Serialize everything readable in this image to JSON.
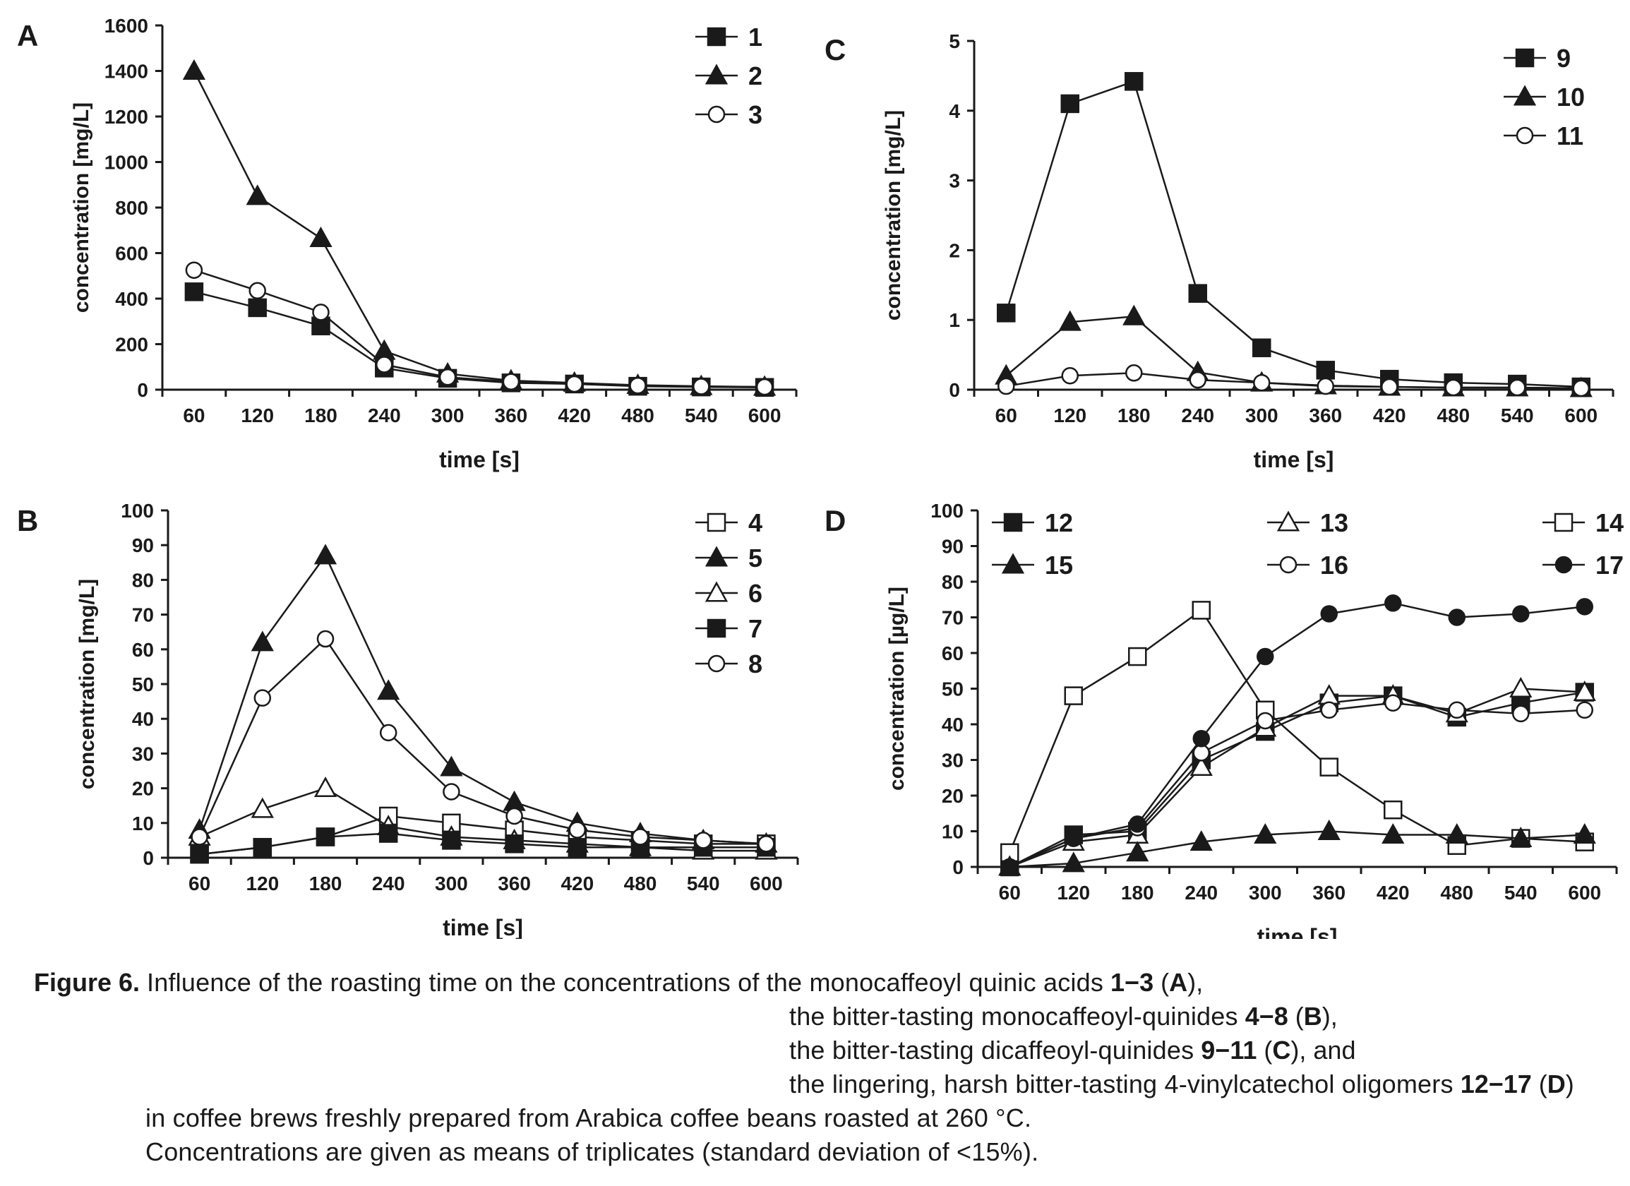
{
  "chart_data": [
    {
      "panel": "A",
      "type": "line",
      "ylabel": "concentration [mg/L]",
      "xlabel": "time [s]",
      "ylim": [
        0,
        1600
      ],
      "yticks": [
        "0",
        "200",
        "400",
        "600",
        "800",
        "1000",
        "1200",
        "1400",
        "1600"
      ],
      "categories": [
        "60",
        "120",
        "180",
        "240",
        "300",
        "360",
        "420",
        "480",
        "540",
        "600"
      ],
      "series": [
        {
          "name": "1",
          "marker": "square-filled",
          "values": [
            430,
            360,
            280,
            95,
            50,
            30,
            25,
            15,
            12,
            10
          ]
        },
        {
          "name": "2",
          "marker": "triangle-filled",
          "values": [
            1400,
            850,
            665,
            170,
            70,
            40,
            30,
            20,
            15,
            12
          ]
        },
        {
          "name": "3",
          "marker": "circle-open",
          "values": [
            525,
            435,
            340,
            110,
            55,
            35,
            25,
            18,
            14,
            12
          ]
        }
      ]
    },
    {
      "panel": "B",
      "type": "line",
      "ylabel": "concentration [mg/L]",
      "xlabel": "time [s]",
      "ylim": [
        0,
        100
      ],
      "yticks": [
        "0",
        "10",
        "20",
        "30",
        "40",
        "50",
        "60",
        "70",
        "80",
        "90",
        "100"
      ],
      "categories": [
        "60",
        "120",
        "180",
        "240",
        "300",
        "360",
        "420",
        "480",
        "540",
        "600"
      ],
      "series": [
        {
          "name": "4",
          "marker": "square-open",
          "values": [
            1,
            3,
            6,
            12,
            10,
            8,
            6,
            5,
            4,
            4
          ]
        },
        {
          "name": "5",
          "marker": "triangle-filled",
          "values": [
            8,
            62,
            87,
            48,
            26,
            16,
            10,
            7,
            5,
            4
          ]
        },
        {
          "name": "6",
          "marker": "triangle-open",
          "values": [
            6,
            14,
            20,
            9,
            6,
            5,
            4,
            3,
            2,
            2
          ]
        },
        {
          "name": "7",
          "marker": "square-filled",
          "values": [
            1,
            3,
            6,
            7,
            5,
            4,
            3,
            3,
            3,
            3
          ]
        },
        {
          "name": "8",
          "marker": "circle-open",
          "values": [
            6,
            46,
            63,
            36,
            19,
            12,
            8,
            6,
            5,
            4
          ]
        }
      ]
    },
    {
      "panel": "C",
      "type": "line",
      "ylabel": "concentration [mg/L]",
      "xlabel": "time [s]",
      "ylim": [
        0,
        5
      ],
      "yticks": [
        "0",
        "1",
        "2",
        "3",
        "4",
        "5"
      ],
      "categories": [
        "60",
        "120",
        "180",
        "240",
        "300",
        "360",
        "420",
        "480",
        "540",
        "600"
      ],
      "series": [
        {
          "name": "9",
          "marker": "square-filled",
          "values": [
            1.1,
            4.1,
            4.42,
            1.38,
            0.6,
            0.28,
            0.15,
            0.1,
            0.08,
            0.04
          ]
        },
        {
          "name": "10",
          "marker": "triangle-filled",
          "values": [
            0.2,
            0.97,
            1.05,
            0.25,
            0.1,
            0.06,
            0.04,
            0.03,
            0.03,
            0.02
          ]
        },
        {
          "name": "11",
          "marker": "circle-open",
          "values": [
            0.05,
            0.2,
            0.24,
            0.14,
            0.1,
            0.05,
            0.04,
            0.03,
            0.03,
            0.02
          ]
        }
      ]
    },
    {
      "panel": "D",
      "type": "line",
      "ylabel": "concentration [µg/L]",
      "xlabel": "time [s]",
      "ylim": [
        0,
        100
      ],
      "yticks": [
        "0",
        "10",
        "20",
        "30",
        "40",
        "50",
        "60",
        "70",
        "80",
        "90",
        "100"
      ],
      "categories": [
        "60",
        "120",
        "180",
        "240",
        "300",
        "360",
        "420",
        "480",
        "540",
        "600"
      ],
      "series": [
        {
          "name": "12",
          "marker": "square-filled",
          "values": [
            0,
            9,
            10,
            30,
            38,
            46,
            48,
            42,
            46,
            49
          ]
        },
        {
          "name": "13",
          "marker": "triangle-open",
          "values": [
            0,
            7,
            9,
            28,
            39,
            48,
            48,
            43,
            50,
            49
          ]
        },
        {
          "name": "14",
          "marker": "square-open",
          "values": [
            4,
            48,
            59,
            72,
            44,
            28,
            16,
            6,
            8,
            7
          ]
        },
        {
          "name": "15",
          "marker": "triangle-filled",
          "values": [
            0,
            1,
            4,
            7,
            9,
            10,
            9,
            9,
            8,
            9
          ]
        },
        {
          "name": "16",
          "marker": "circle-open",
          "values": [
            0,
            8,
            11,
            32,
            41,
            44,
            46,
            44,
            43,
            44
          ]
        },
        {
          "name": "17",
          "marker": "circle-filled",
          "values": [
            0,
            8,
            12,
            36,
            59,
            71,
            74,
            70,
            71,
            73
          ]
        }
      ]
    }
  ],
  "caption": {
    "label": "Figure 6.",
    "intro": "Influence of the roasting time on the concentrations of",
    "line1_text": "the monocaffeoyl quinic acids",
    "line1_range": "1−3",
    "line1_panel": "A",
    "line2_text": "the bitter-tasting monocaffeoyl-quinides",
    "line2_range": "4−8",
    "line2_panel": "B",
    "line3_text": "the bitter-tasting dicaffeoyl-quinides",
    "line3_range": "9−11",
    "line3_panel": "C",
    "line3_suffix": ", and",
    "line4_text": "the lingering, harsh bitter-tasting 4-vinylcatechol oligomers",
    "line4_range": "12−17",
    "line4_panel": "D",
    "line5": "in coffee brews freshly prepared from Arabica coffee beans roasted at 260 °C.",
    "line6": "Concentrations are given as means of triplicates (standard deviation of <15%)."
  }
}
